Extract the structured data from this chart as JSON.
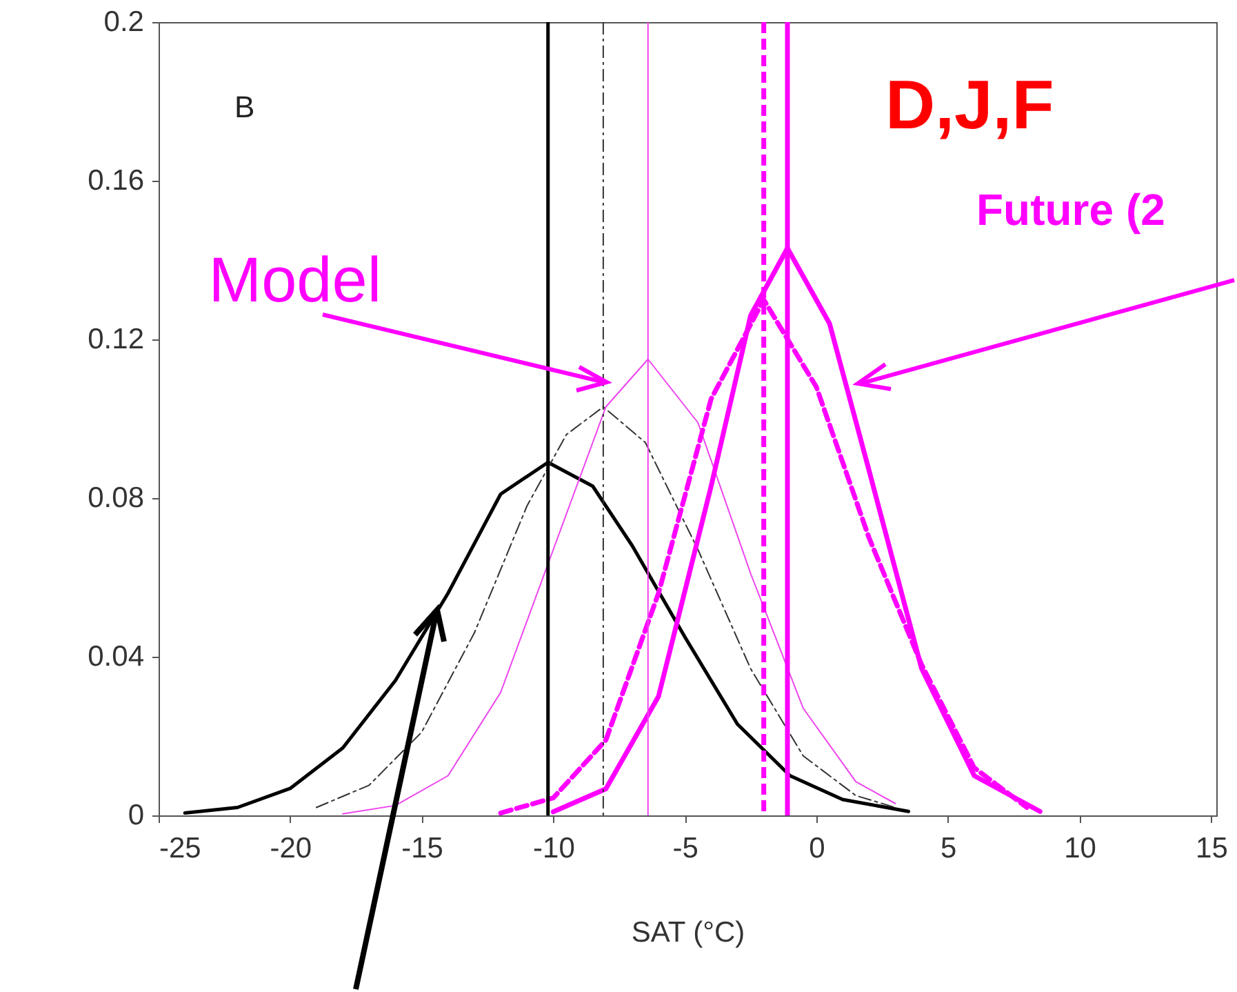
{
  "chart_data": {
    "type": "line",
    "xlabel": "SAT (°C)",
    "xlim": [
      -25,
      15.2
    ],
    "xticks": [
      -25,
      -20,
      -15,
      -10,
      -5,
      0,
      5,
      10,
      15
    ],
    "ylim": [
      0,
      0.2
    ],
    "yticks": [
      0,
      0.04,
      0.08,
      0.12,
      0.16,
      0.2
    ],
    "series": [
      {
        "color": "#000000",
        "line_style": "solid",
        "x": [
          -24,
          -22,
          -20,
          -18,
          -16,
          -14,
          -12,
          -10.2,
          -8.5,
          -7,
          -5,
          -3,
          -1,
          1,
          3.5
        ],
        "values": [
          0.0006,
          0.002,
          0.0068,
          0.017,
          0.034,
          0.056,
          0.081,
          0.089,
          0.083,
          0.068,
          0.045,
          0.023,
          0.01,
          0.004,
          0.001
        ]
      },
      {
        "color": "#333333",
        "line_style": "dashdot",
        "x": [
          -19,
          -17,
          -15,
          -13,
          -11,
          -9.5,
          -8.1,
          -6.5,
          -4.5,
          -2.5,
          -0.5,
          1.5,
          3
        ],
        "values": [
          0.002,
          0.0076,
          0.021,
          0.046,
          0.078,
          0.096,
          0.103,
          0.094,
          0.067,
          0.037,
          0.015,
          0.005,
          0.002
        ]
      },
      {
        "color": "#ee44ee",
        "line_style": "solid",
        "x": [
          -18,
          -16,
          -14,
          -12,
          -10,
          -8,
          -6.4,
          -4.5,
          -2.5,
          -0.5,
          1.5,
          3
        ],
        "values": [
          0.0004,
          0.0025,
          0.01,
          0.031,
          0.067,
          0.103,
          0.115,
          0.099,
          0.061,
          0.027,
          0.0085,
          0.003
        ]
      },
      {
        "color": "#ff00ff",
        "line_style": "solid",
        "x": [
          -10,
          -8,
          -6,
          -4,
          -2.5,
          -1.1,
          0.5,
          2,
          4,
          6,
          8.5
        ],
        "values": [
          0.0009,
          0.0067,
          0.03,
          0.083,
          0.126,
          0.143,
          0.124,
          0.087,
          0.037,
          0.01,
          0.001
        ]
      },
      {
        "color": "#ff00ff",
        "line_style": "dashed",
        "x": [
          -12,
          -10,
          -8,
          -6,
          -4,
          -2,
          0,
          2,
          4,
          6,
          8
        ],
        "values": [
          0.0006,
          0.0044,
          0.019,
          0.056,
          0.105,
          0.13,
          0.108,
          0.07,
          0.038,
          0.012,
          0.002
        ]
      }
    ],
    "ref_lines": [
      {
        "axis": "x",
        "value": -10.2,
        "color": "#000000",
        "line_style": "solid"
      },
      {
        "axis": "x",
        "value": -8.1,
        "color": "#333333",
        "line_style": "dashdot"
      },
      {
        "axis": "x",
        "value": -6.4,
        "color": "#ee44ee",
        "line_style": "solid"
      },
      {
        "axis": "x",
        "value": -1.1,
        "color": "#ff00ff",
        "line_style": "solid"
      },
      {
        "axis": "x",
        "value": -2,
        "color": "#ff00ff",
        "line_style": "dashed"
      }
    ],
    "annotations": [
      "B",
      "D,J,F",
      "Future (2",
      {
        "text": "Model",
        "x": -7.9,
        "y": 0.109
      }
    ]
  }
}
